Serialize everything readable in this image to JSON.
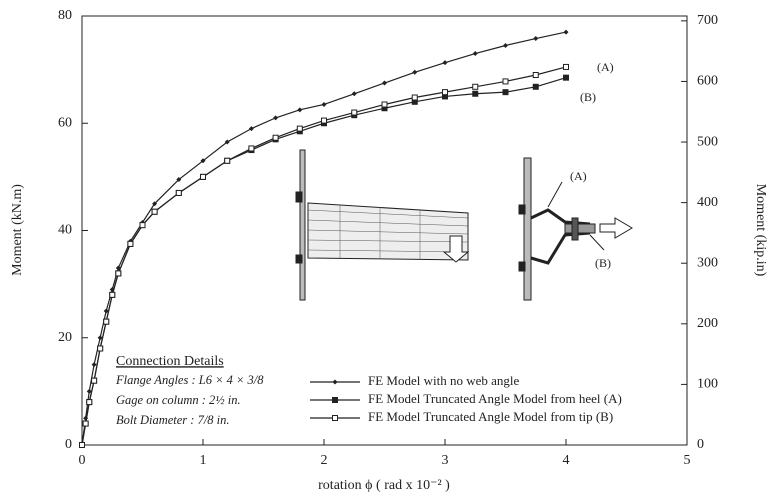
{
  "chart_data": {
    "type": "line",
    "xlabel": "rotation ϕ ( rad x 10⁻² )",
    "ylabel": "Moment (kN.m)",
    "y2label": "Moment (kip.in)",
    "xlim": [
      0,
      5
    ],
    "xticks": [
      0,
      1,
      2,
      3,
      4,
      5
    ],
    "ylim": [
      0,
      80
    ],
    "yticks": [
      0,
      20,
      40,
      60,
      80
    ],
    "y2lim": [
      0,
      708
    ],
    "y2ticks": [
      0,
      100,
      200,
      300,
      400,
      500,
      600,
      700
    ],
    "grid": false,
    "x": [
      0,
      0.03,
      0.06,
      0.1,
      0.15,
      0.2,
      0.25,
      0.3,
      0.4,
      0.5,
      0.6,
      0.8,
      1.0,
      1.2,
      1.4,
      1.6,
      1.8,
      2.0,
      2.25,
      2.5,
      2.75,
      3.0,
      3.25,
      3.5,
      3.75,
      4.0
    ],
    "series": [
      {
        "name": "FE Model with no web angle",
        "color": "#222",
        "marker": "diamond",
        "values": [
          0,
          5,
          10,
          15,
          20,
          25,
          29,
          33,
          38,
          41.5,
          45,
          49.5,
          53,
          56.5,
          59,
          61,
          62.5,
          63.5,
          65.5,
          67.5,
          69.5,
          71.3,
          73,
          74.5,
          75.8,
          77
        ]
      },
      {
        "name": "FE Model Truncated Angle Model from heel (A)",
        "color": "#222",
        "marker": "filled-square",
        "values": [
          0,
          4,
          8,
          12,
          18,
          23,
          28,
          32,
          37.5,
          41,
          43.5,
          47,
          50,
          53,
          55,
          57,
          58.5,
          60,
          61.5,
          62.8,
          64,
          65,
          65.5,
          65.8,
          66.8,
          68.5
        ]
      },
      {
        "name": "FE Model Truncated Angle Model  from tip (B)",
        "color": "#222",
        "marker": "open-square",
        "values": [
          0,
          4,
          8,
          12,
          18,
          23,
          28,
          32,
          37.5,
          41,
          43.5,
          47,
          50,
          53,
          55.3,
          57.3,
          59,
          60.5,
          62,
          63.5,
          64.8,
          65.8,
          66.8,
          67.8,
          69,
          70.5
        ]
      }
    ],
    "legend": "lower-center",
    "annotations": [
      "(A)",
      "(B)",
      "(A)",
      "(B)"
    ],
    "details": {
      "title": "Connection Details",
      "lines": [
        "Flange Angles :  L6 × 4 × 3/8",
        "Gage on column : 2½ in.",
        "Bolt Diameter : 7/8 in."
      ]
    }
  }
}
